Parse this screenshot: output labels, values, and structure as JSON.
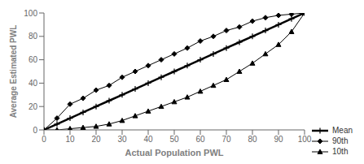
{
  "chart_data": {
    "type": "line",
    "xlabel": "Actual Population PWL",
    "ylabel": "Average Estimated PWL",
    "x": [
      0,
      5,
      10,
      15,
      20,
      25,
      30,
      35,
      40,
      45,
      50,
      55,
      60,
      65,
      70,
      75,
      80,
      85,
      90,
      95,
      100
    ],
    "series": [
      {
        "name": "Mean",
        "color": "#000000",
        "marker": "plus",
        "values": [
          0,
          5,
          10,
          15,
          20,
          25,
          30,
          35,
          40,
          45,
          50,
          55,
          60,
          65,
          70,
          75,
          80,
          85,
          90,
          95,
          100
        ]
      },
      {
        "name": "90th",
        "color": "#000000",
        "marker": "diamond",
        "values": [
          0,
          10,
          22,
          27,
          34,
          38,
          45,
          50,
          55,
          60,
          65,
          70,
          76,
          80,
          85,
          88,
          93,
          96,
          98,
          99,
          100
        ]
      },
      {
        "name": "10th",
        "color": "#000000",
        "marker": "triangle",
        "values": [
          0,
          0,
          1,
          2,
          3,
          5,
          8,
          12,
          16,
          20,
          24,
          28,
          33,
          38,
          43,
          50,
          57,
          65,
          73,
          84,
          100
        ]
      }
    ],
    "xlim": [
      0,
      100
    ],
    "ylim": [
      0,
      100
    ],
    "xticks": [
      0,
      10,
      20,
      30,
      40,
      50,
      60,
      70,
      80,
      90,
      100
    ],
    "yticks": [
      0,
      20,
      40,
      60,
      80,
      100
    ],
    "legend": "lower right",
    "grid": false
  }
}
